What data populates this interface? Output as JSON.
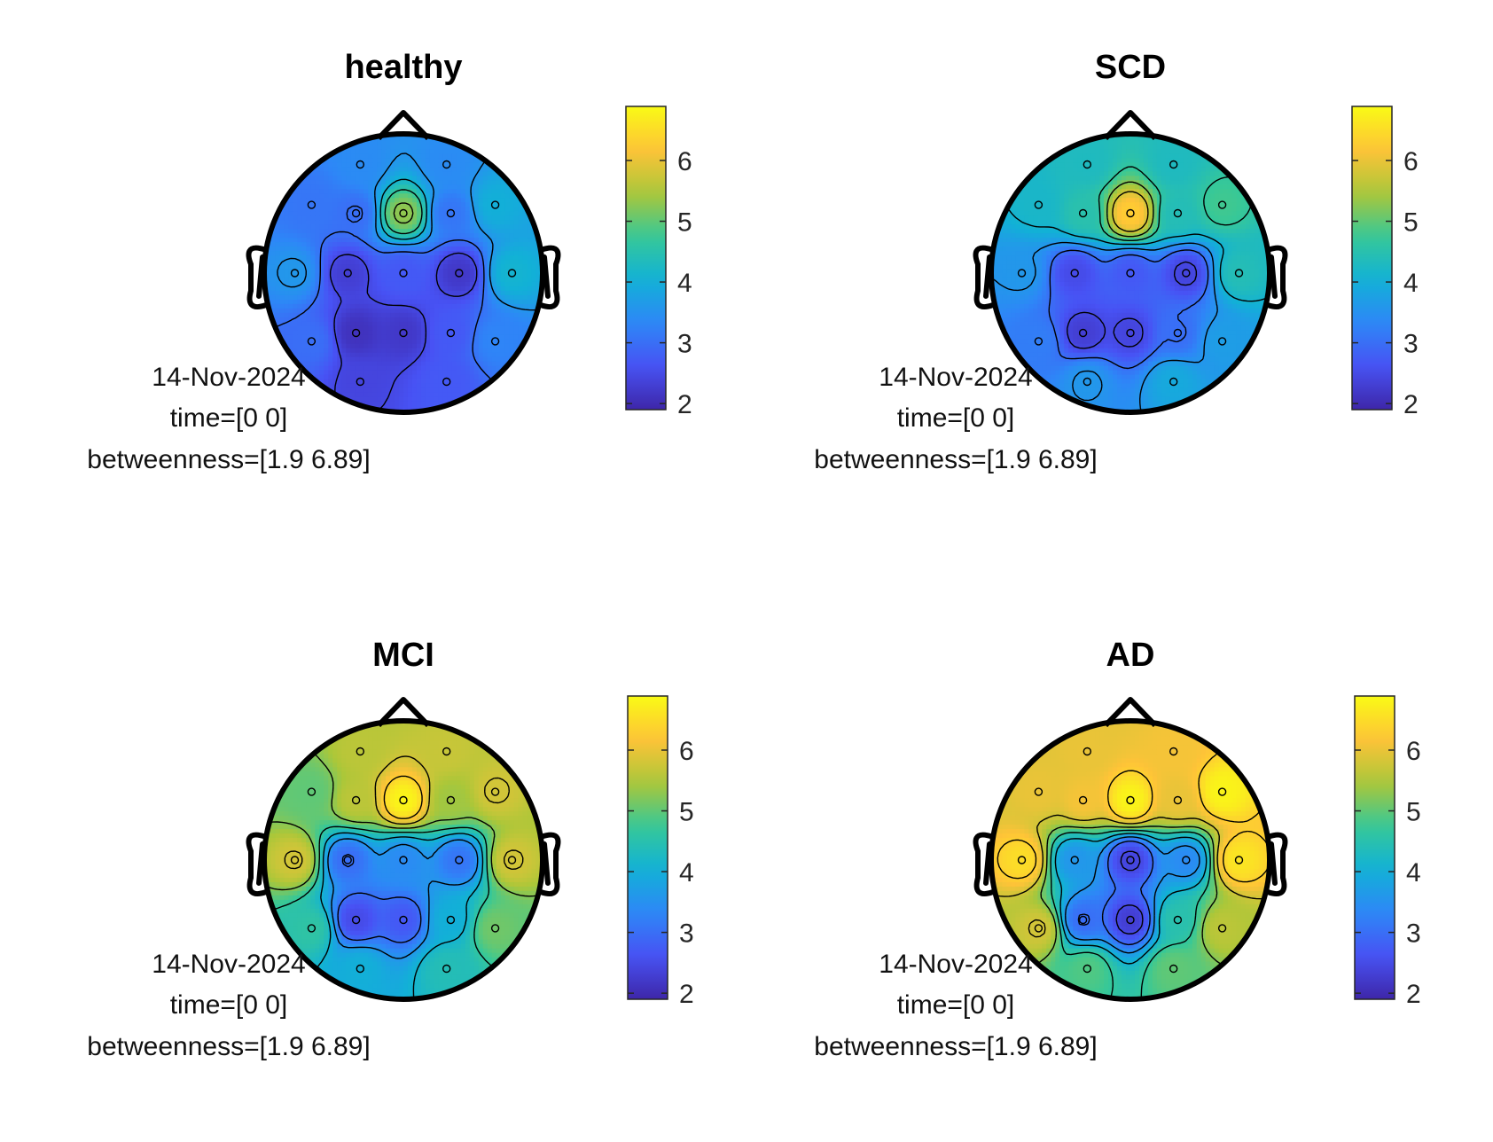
{
  "chart_data": [
    {
      "type": "heatmap",
      "title": "healthy",
      "date": "14-Nov-2024",
      "time_label": "time=[0 0]",
      "measure_label": "betweenness=[1.9 6.89]",
      "colormap": "parula",
      "clim": [
        1.9,
        6.89
      ],
      "colorbar_ticks": [
        "2",
        "3",
        "4",
        "5",
        "6"
      ],
      "electrodes": [
        {
          "x": -0.31,
          "y": 0.78,
          "v": 3.4
        },
        {
          "x": 0.31,
          "y": 0.78,
          "v": 3.4
        },
        {
          "x": -0.66,
          "y": 0.49,
          "v": 3.1
        },
        {
          "x": -0.34,
          "y": 0.43,
          "v": 3.0
        },
        {
          "x": 0.0,
          "y": 0.43,
          "v": 5.3
        },
        {
          "x": 0.34,
          "y": 0.43,
          "v": 3.1
        },
        {
          "x": 0.66,
          "y": 0.49,
          "v": 4.0
        },
        {
          "x": -0.78,
          "y": 0.0,
          "v": 3.6
        },
        {
          "x": -0.4,
          "y": 0.0,
          "v": 2.3
        },
        {
          "x": 0.0,
          "y": 0.0,
          "v": 2.7
        },
        {
          "x": 0.4,
          "y": 0.0,
          "v": 2.2
        },
        {
          "x": 0.78,
          "y": 0.0,
          "v": 4.1
        },
        {
          "x": -0.66,
          "y": -0.49,
          "v": 3.0
        },
        {
          "x": -0.34,
          "y": -0.43,
          "v": 2.1
        },
        {
          "x": 0.0,
          "y": -0.43,
          "v": 2.2
        },
        {
          "x": 0.34,
          "y": -0.43,
          "v": 2.7
        },
        {
          "x": 0.66,
          "y": -0.49,
          "v": 3.3
        },
        {
          "x": -0.31,
          "y": -0.78,
          "v": 2.4
        },
        {
          "x": 0.31,
          "y": -0.78,
          "v": 2.7
        }
      ]
    },
    {
      "type": "heatmap",
      "title": "SCD",
      "date": "14-Nov-2024",
      "time_label": "time=[0 0]",
      "measure_label": "betweenness=[1.9 6.89]",
      "colormap": "parula",
      "clim": [
        1.9,
        6.89
      ],
      "colorbar_ticks": [
        "2",
        "3",
        "4",
        "5",
        "6"
      ],
      "electrodes": [
        {
          "x": -0.31,
          "y": 0.78,
          "v": 4.3
        },
        {
          "x": 0.31,
          "y": 0.78,
          "v": 4.3
        },
        {
          "x": -0.66,
          "y": 0.49,
          "v": 4.2
        },
        {
          "x": -0.34,
          "y": 0.43,
          "v": 4.5
        },
        {
          "x": 0.0,
          "y": 0.43,
          "v": 6.3
        },
        {
          "x": 0.34,
          "y": 0.43,
          "v": 4.4
        },
        {
          "x": 0.66,
          "y": 0.49,
          "v": 4.8
        },
        {
          "x": -0.78,
          "y": 0.0,
          "v": 3.6
        },
        {
          "x": -0.4,
          "y": 0.0,
          "v": 2.5
        },
        {
          "x": 0.0,
          "y": 0.0,
          "v": 2.7
        },
        {
          "x": 0.4,
          "y": 0.0,
          "v": 2.4
        },
        {
          "x": 0.78,
          "y": 0.0,
          "v": 4.4
        },
        {
          "x": -0.66,
          "y": -0.49,
          "v": 3.2
        },
        {
          "x": -0.34,
          "y": -0.43,
          "v": 2.3
        },
        {
          "x": 0.0,
          "y": -0.43,
          "v": 2.4
        },
        {
          "x": 0.34,
          "y": -0.43,
          "v": 3.0
        },
        {
          "x": 0.66,
          "y": -0.49,
          "v": 3.7
        },
        {
          "x": -0.31,
          "y": -0.78,
          "v": 3.6
        },
        {
          "x": 0.31,
          "y": -0.78,
          "v": 3.9
        }
      ]
    },
    {
      "type": "heatmap",
      "title": "MCI",
      "date": "14-Nov-2024",
      "time_label": "time=[0 0]",
      "measure_label": "betweenness=[1.9 6.89]",
      "colormap": "parula",
      "clim": [
        1.9,
        6.89
      ],
      "colorbar_ticks": [
        "2",
        "3",
        "4",
        "5",
        "6"
      ],
      "electrodes": [
        {
          "x": -0.31,
          "y": 0.78,
          "v": 5.6
        },
        {
          "x": 0.31,
          "y": 0.78,
          "v": 5.7
        },
        {
          "x": -0.66,
          "y": 0.49,
          "v": 5.0
        },
        {
          "x": -0.34,
          "y": 0.43,
          "v": 5.6
        },
        {
          "x": 0.0,
          "y": 0.43,
          "v": 6.8
        },
        {
          "x": 0.34,
          "y": 0.43,
          "v": 5.4
        },
        {
          "x": 0.66,
          "y": 0.49,
          "v": 5.8
        },
        {
          "x": -0.78,
          "y": 0.0,
          "v": 5.8
        },
        {
          "x": -0.4,
          "y": 0.0,
          "v": 3.0
        },
        {
          "x": 0.0,
          "y": 0.0,
          "v": 3.4
        },
        {
          "x": 0.4,
          "y": 0.0,
          "v": 3.1
        },
        {
          "x": 0.78,
          "y": 0.0,
          "v": 5.8
        },
        {
          "x": -0.66,
          "y": -0.49,
          "v": 4.6
        },
        {
          "x": -0.34,
          "y": -0.43,
          "v": 2.5
        },
        {
          "x": 0.0,
          "y": -0.43,
          "v": 2.7
        },
        {
          "x": 0.34,
          "y": -0.43,
          "v": 4.0
        },
        {
          "x": 0.66,
          "y": -0.49,
          "v": 5.1
        },
        {
          "x": -0.31,
          "y": -0.78,
          "v": 4.0
        },
        {
          "x": 0.31,
          "y": -0.78,
          "v": 4.4
        }
      ]
    },
    {
      "type": "heatmap",
      "title": "AD",
      "date": "14-Nov-2024",
      "time_label": "time=[0 0]",
      "measure_label": "betweenness=[1.9 6.89]",
      "colormap": "parula",
      "clim": [
        1.9,
        6.89
      ],
      "colorbar_ticks": [
        "2",
        "3",
        "4",
        "5",
        "6"
      ],
      "electrodes": [
        {
          "x": -0.31,
          "y": 0.78,
          "v": 6.0
        },
        {
          "x": 0.31,
          "y": 0.78,
          "v": 6.1
        },
        {
          "x": -0.66,
          "y": 0.49,
          "v": 6.0
        },
        {
          "x": -0.34,
          "y": 0.43,
          "v": 6.1
        },
        {
          "x": 0.0,
          "y": 0.43,
          "v": 6.8
        },
        {
          "x": 0.34,
          "y": 0.43,
          "v": 6.0
        },
        {
          "x": 0.66,
          "y": 0.49,
          "v": 6.8
        },
        {
          "x": -0.78,
          "y": 0.0,
          "v": 6.5
        },
        {
          "x": -0.4,
          "y": 0.0,
          "v": 3.6
        },
        {
          "x": 0.0,
          "y": 0.0,
          "v": 2.4
        },
        {
          "x": 0.4,
          "y": 0.0,
          "v": 3.4
        },
        {
          "x": 0.78,
          "y": 0.0,
          "v": 6.6
        },
        {
          "x": -0.66,
          "y": -0.49,
          "v": 5.8
        },
        {
          "x": -0.34,
          "y": -0.43,
          "v": 3.0
        },
        {
          "x": 0.0,
          "y": -0.43,
          "v": 2.3
        },
        {
          "x": 0.34,
          "y": -0.43,
          "v": 4.5
        },
        {
          "x": 0.66,
          "y": -0.49,
          "v": 5.6
        },
        {
          "x": -0.31,
          "y": -0.78,
          "v": 4.9
        },
        {
          "x": 0.31,
          "y": -0.78,
          "v": 5.0
        }
      ]
    }
  ]
}
